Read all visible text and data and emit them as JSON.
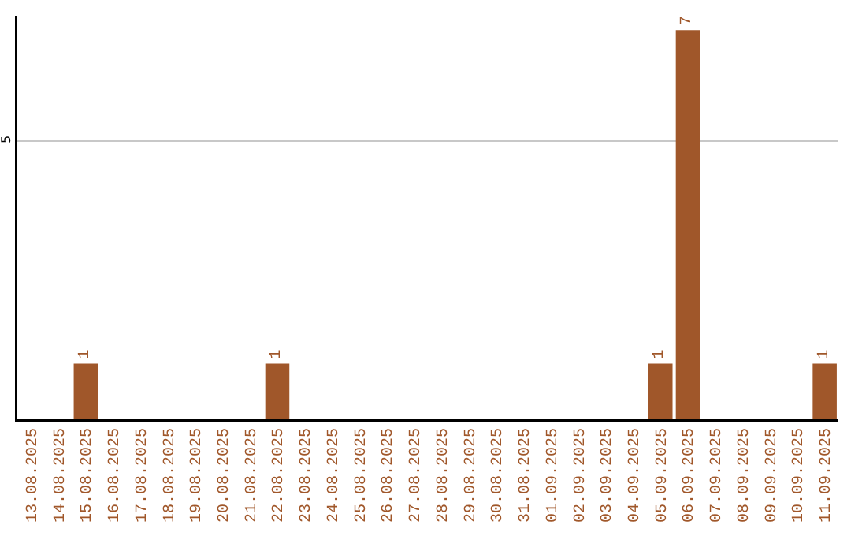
{
  "chart_data": {
    "type": "bar",
    "categories": [
      "13.08.2025",
      "14.08.2025",
      "15.08.2025",
      "16.08.2025",
      "17.08.2025",
      "18.08.2025",
      "19.08.2025",
      "20.08.2025",
      "21.08.2025",
      "22.08.2025",
      "23.08.2025",
      "24.08.2025",
      "25.08.2025",
      "26.08.2025",
      "27.08.2025",
      "28.08.2025",
      "29.08.2025",
      "30.08.2025",
      "31.08.2025",
      "01.09.2025",
      "02.09.2025",
      "03.09.2025",
      "04.09.2025",
      "05.09.2025",
      "06.09.2025",
      "07.09.2025",
      "08.09.2025",
      "09.09.2025",
      "10.09.2025",
      "11.09.2025"
    ],
    "values": [
      0,
      0,
      1,
      0,
      0,
      0,
      0,
      0,
      0,
      1,
      0,
      0,
      0,
      0,
      0,
      0,
      0,
      0,
      0,
      0,
      0,
      0,
      0,
      1,
      7,
      0,
      0,
      0,
      0,
      1
    ],
    "value_labels": [
      null,
      null,
      "1",
      null,
      null,
      null,
      null,
      null,
      null,
      "1",
      null,
      null,
      null,
      null,
      null,
      null,
      null,
      null,
      null,
      null,
      null,
      null,
      null,
      "1",
      "7",
      null,
      null,
      null,
      null,
      "1"
    ],
    "color": "#a0572a",
    "ylim": [
      0,
      7.26
    ],
    "yticks": [
      5
    ],
    "grid": "y"
  }
}
